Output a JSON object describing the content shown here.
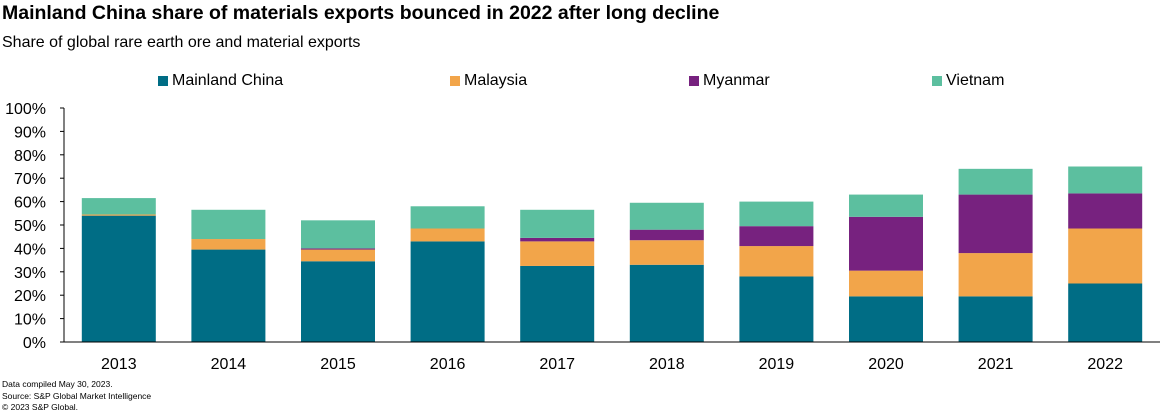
{
  "header": {
    "title": "Mainland China share of materials exports bounced in 2022 after long decline",
    "subtitle": "Share of global rare earth ore and material exports"
  },
  "chart_data": {
    "type": "bar",
    "stacked": true,
    "title": "Mainland China share of materials exports bounced in 2022 after long decline",
    "subtitle": "Share of global rare earth ore and material exports",
    "xlabel": "",
    "ylabel": "",
    "ylim": [
      0,
      100
    ],
    "yticks": [
      "0%",
      "10%",
      "20%",
      "30%",
      "40%",
      "50%",
      "60%",
      "70%",
      "80%",
      "90%",
      "100%"
    ],
    "categories": [
      "2013",
      "2014",
      "2015",
      "2016",
      "2017",
      "2018",
      "2019",
      "2020",
      "2021",
      "2022"
    ],
    "legend_position": "top",
    "series": [
      {
        "name": "Mainland China",
        "color": "#006d85",
        "values": [
          54,
          39.5,
          34.5,
          43,
          32.5,
          33,
          28,
          19.5,
          19.5,
          25
        ]
      },
      {
        "name": "Malaysia",
        "color": "#f2a54a",
        "values": [
          0.5,
          4.5,
          5,
          5.5,
          10.5,
          10.5,
          13,
          11,
          18.5,
          23.5
        ]
      },
      {
        "name": "Myanmar",
        "color": "#77227f",
        "values": [
          0,
          0,
          0.5,
          0,
          1.5,
          4.5,
          8.5,
          23,
          25,
          15
        ]
      },
      {
        "name": "Vietnam",
        "color": "#5cbf9f",
        "values": [
          7,
          12.5,
          12,
          9.5,
          12,
          11.5,
          10.5,
          9.5,
          11,
          11.5
        ]
      }
    ]
  },
  "footnotes": [
    "Data compiled May 30, 2023.",
    "Source: S&P Global Market Intelligence",
    "© 2023 S&P Global."
  ]
}
